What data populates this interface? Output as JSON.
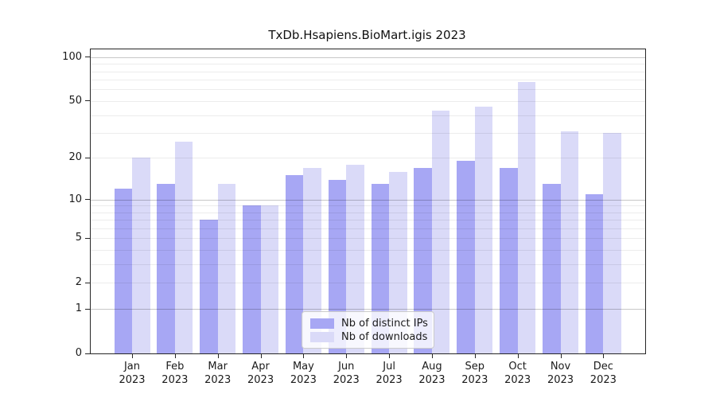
{
  "title": "TxDb.Hsapiens.BioMart.igis 2023",
  "chart_data": {
    "type": "bar",
    "title": "TxDb.Hsapiens.BioMart.igis 2023",
    "categories": [
      "Jan",
      "Feb",
      "Mar",
      "Apr",
      "May",
      "Jun",
      "Jul",
      "Aug",
      "Sep",
      "Oct",
      "Nov",
      "Dec"
    ],
    "category_year": "2023",
    "series": [
      {
        "name": "Nb of distinct IPs",
        "color": "#a7a7f4",
        "values": [
          12,
          13,
          7,
          9,
          15,
          14,
          13,
          17,
          19,
          17,
          13,
          11
        ]
      },
      {
        "name": "Nb of downloads",
        "color": "#dadaf8",
        "values": [
          20,
          26,
          13,
          9,
          17,
          18,
          16,
          43,
          46,
          68,
          31,
          30
        ]
      }
    ],
    "xlabel": "",
    "ylabel": "",
    "yscale": "log1p",
    "ylim": [
      0,
      112
    ],
    "yticks": [
      100,
      50,
      20,
      10,
      5,
      2,
      1,
      0
    ],
    "minor_gridlines": [
      2,
      3,
      4,
      5,
      6,
      7,
      8,
      9,
      20,
      30,
      40,
      50,
      60,
      70,
      80,
      90
    ],
    "major_gridlines": [
      1,
      10,
      100
    ],
    "grid": "horizontal, drawn over bars",
    "legend_position": "bottom-center-inside",
    "axis_color": "#262626",
    "background_color": "#ffffff"
  }
}
